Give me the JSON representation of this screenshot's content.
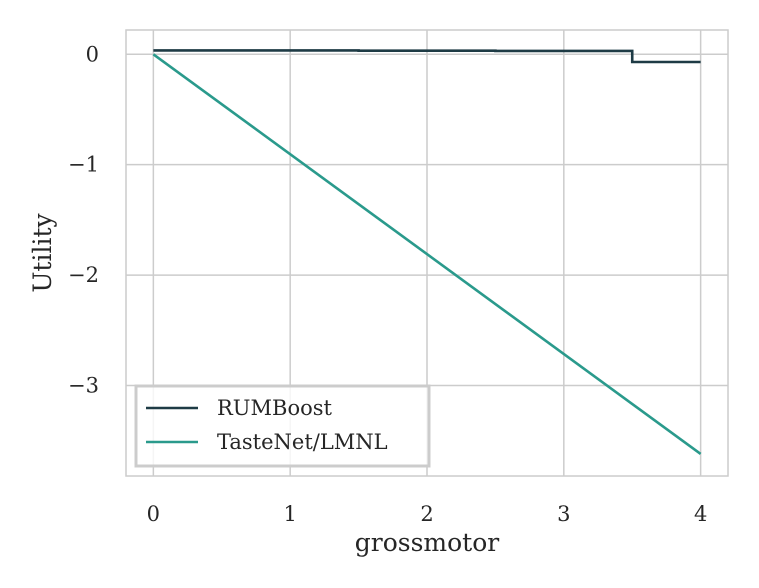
{
  "chart_data": {
    "type": "line",
    "xlabel": "grossmotor",
    "ylabel": "Utility",
    "xlim": [
      -0.2,
      4.2
    ],
    "ylim": [
      -3.82,
      0.22
    ],
    "xticks": [
      0,
      1,
      2,
      3,
      4
    ],
    "yticks": [
      0,
      -1,
      -2,
      -3
    ],
    "xtick_labels": [
      "0",
      "1",
      "2",
      "3",
      "4"
    ],
    "ytick_labels": [
      "0",
      "−1",
      "−2",
      "−3"
    ],
    "grid": true,
    "legend_position": "lower-left",
    "series": [
      {
        "name": "RUMBoost",
        "color": "#1e3b45",
        "step": true,
        "x": [
          0,
          1.5,
          1.5,
          2.5,
          2.5,
          3.5,
          3.5,
          4.0
        ],
        "y": [
          0.035,
          0.035,
          0.033,
          0.033,
          0.03,
          0.03,
          -0.07,
          -0.07
        ]
      },
      {
        "name": "TasteNet/LMNL",
        "color": "#2a9a8c",
        "step": false,
        "x": [
          0,
          4
        ],
        "y": [
          0.0,
          -3.62
        ]
      }
    ]
  }
}
